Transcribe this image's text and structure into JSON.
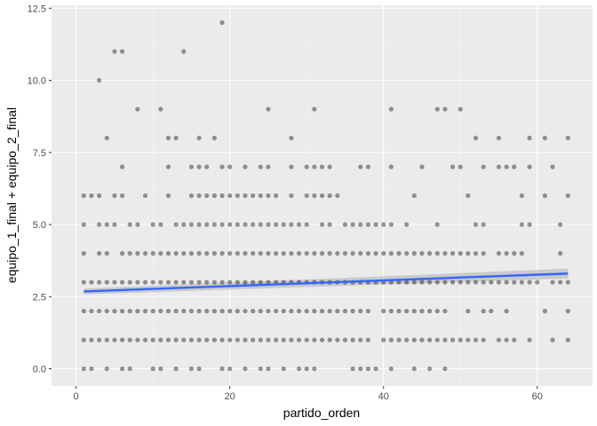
{
  "chart_data": {
    "type": "scatter",
    "title": "",
    "xlabel": "partido_orden",
    "ylabel": "equipo_1_final + equipo_2_final",
    "xlim": [
      -3.2,
      67.2
    ],
    "ylim": [
      -0.6,
      12.6
    ],
    "x_ticks": [
      0,
      20,
      40,
      60
    ],
    "x_tick_labels": [
      "0",
      "20",
      "40",
      "60"
    ],
    "y_ticks": [
      0,
      2.5,
      5,
      7.5,
      10,
      12.5
    ],
    "y_tick_labels": [
      "0.0",
      "2.5",
      "5.0",
      "7.5",
      "10.0",
      "12.5"
    ],
    "grid": true,
    "legend": "none",
    "point_color": "#000000",
    "point_opacity": 0.4,
    "panel_background": "#ebebeb",
    "rows": [
      {
        "y": 12,
        "x": [
          19
        ]
      },
      {
        "y": 11,
        "x": [
          5,
          6,
          14
        ]
      },
      {
        "y": 10,
        "x": [
          3
        ]
      },
      {
        "y": 9,
        "x": [
          8,
          11,
          25,
          31,
          41,
          47,
          48,
          50
        ]
      },
      {
        "y": 8,
        "x": [
          4,
          12,
          13,
          16,
          18,
          28,
          52,
          55,
          59,
          61,
          64
        ]
      },
      {
        "y": 7,
        "x": [
          6,
          12,
          15,
          16,
          17,
          19,
          20,
          22,
          24,
          25,
          28,
          30,
          31,
          32,
          33,
          37,
          38,
          41,
          45,
          49,
          50,
          53,
          55,
          56,
          57,
          59,
          62
        ]
      },
      {
        "y": 6,
        "x": [
          1,
          2,
          3,
          5,
          6,
          9,
          12,
          15,
          16,
          17,
          18,
          19,
          20,
          21,
          22,
          23,
          24,
          25,
          26,
          28,
          30,
          31,
          32,
          33,
          34,
          44,
          51,
          58,
          61,
          64
        ]
      },
      {
        "y": 5,
        "x": [
          1,
          3,
          4,
          5,
          7,
          8,
          10,
          11,
          13,
          14,
          15,
          16,
          17,
          18,
          19,
          20,
          21,
          22,
          23,
          24,
          25,
          26,
          27,
          28,
          29,
          30,
          32,
          33,
          35,
          36,
          37,
          38,
          39,
          40,
          41,
          43,
          47,
          52,
          53,
          58,
          59,
          63
        ]
      },
      {
        "y": 4,
        "x": [
          1,
          3,
          4,
          6,
          7,
          8,
          9,
          10,
          11,
          12,
          13,
          14,
          15,
          16,
          17,
          18,
          19,
          20,
          21,
          22,
          23,
          24,
          25,
          26,
          27,
          28,
          29,
          30,
          31,
          32,
          33,
          34,
          35,
          36,
          37,
          38,
          39,
          40,
          41,
          42,
          43,
          44,
          45,
          46,
          47,
          48,
          49,
          50,
          51,
          52,
          53,
          55,
          56,
          57,
          58,
          63
        ]
      },
      {
        "y": 3,
        "x": [
          1,
          2,
          3,
          4,
          5,
          6,
          7,
          8,
          9,
          10,
          11,
          12,
          13,
          14,
          15,
          16,
          17,
          18,
          19,
          20,
          21,
          22,
          23,
          24,
          25,
          26,
          27,
          28,
          29,
          30,
          31,
          32,
          33,
          34,
          35,
          36,
          37,
          38,
          39,
          40,
          41,
          42,
          43,
          44,
          45,
          46,
          47,
          48,
          49,
          50,
          51,
          52,
          53,
          54,
          55,
          56,
          57,
          58,
          59,
          60,
          62,
          63,
          64
        ]
      },
      {
        "y": 2,
        "x": [
          1,
          2,
          3,
          4,
          5,
          6,
          7,
          8,
          9,
          10,
          11,
          12,
          13,
          14,
          15,
          16,
          17,
          18,
          19,
          20,
          21,
          22,
          23,
          24,
          25,
          26,
          27,
          28,
          29,
          30,
          31,
          32,
          33,
          34,
          35,
          36,
          37,
          38,
          40,
          41,
          42,
          43,
          44,
          45,
          46,
          47,
          48,
          51,
          53,
          54,
          56,
          61,
          64
        ]
      },
      {
        "y": 1,
        "x": [
          1,
          2,
          3,
          4,
          5,
          6,
          7,
          8,
          9,
          10,
          11,
          12,
          13,
          14,
          15,
          16,
          17,
          18,
          19,
          20,
          21,
          22,
          23,
          24,
          25,
          26,
          27,
          28,
          29,
          30,
          31,
          32,
          33,
          34,
          35,
          36,
          37,
          38,
          40,
          41,
          42,
          43,
          44,
          45,
          46,
          47,
          48,
          49,
          50,
          51,
          52,
          53,
          55,
          56,
          57,
          59,
          62,
          64
        ]
      },
      {
        "y": 0,
        "x": [
          1,
          2,
          4,
          6,
          7,
          10,
          11,
          13,
          15,
          16,
          19,
          20,
          22,
          24,
          25,
          27,
          29,
          30,
          31,
          36,
          37,
          38,
          39,
          41,
          44,
          46,
          48
        ]
      }
    ],
    "trend_line": {
      "method": "lm",
      "color": "#3366ff",
      "ribbon_color": "#999999",
      "x": [
        1,
        64
      ],
      "y": [
        2.68,
        3.3
      ],
      "ci_half_width": [
        0.1,
        0.17
      ]
    }
  }
}
